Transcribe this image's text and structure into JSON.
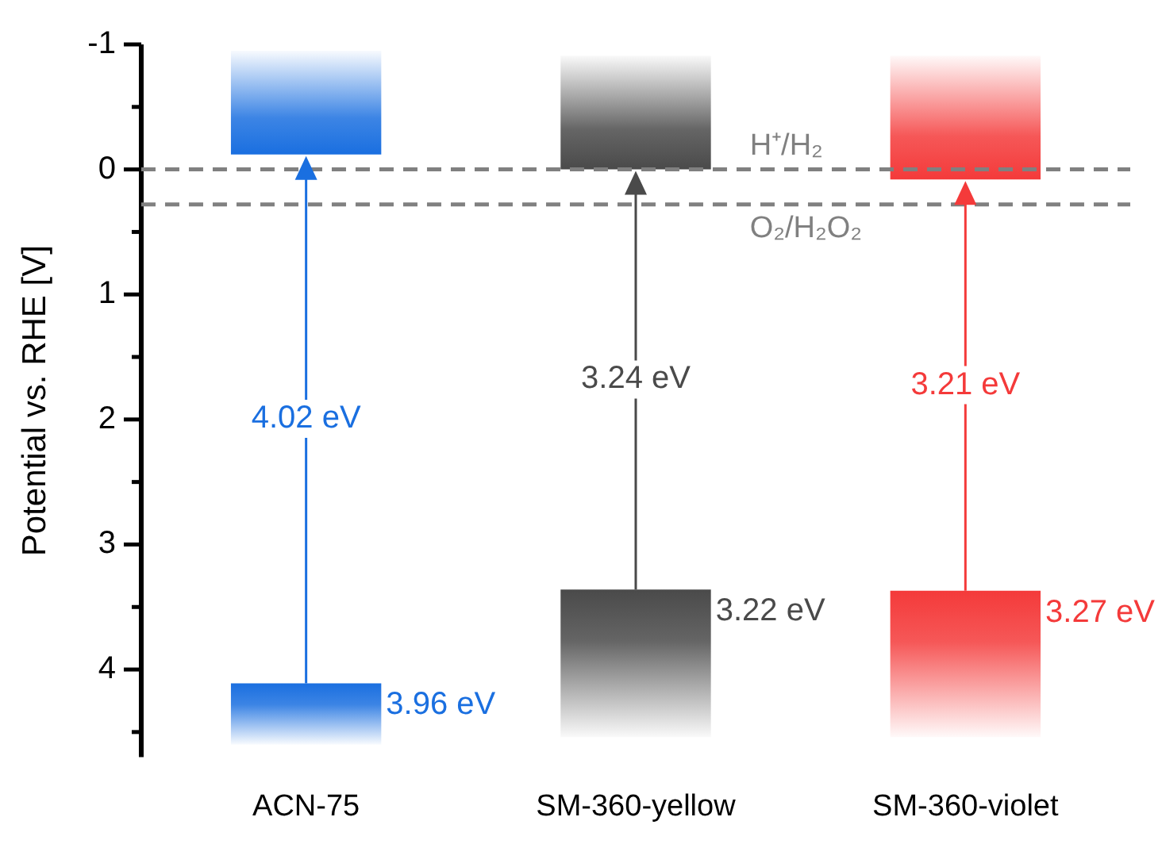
{
  "chart_data": {
    "type": "bar",
    "ylabel": "Potential vs. RHE [V]",
    "categories": [
      "ACN-75",
      "SM-360-yellow",
      "SM-360-violet"
    ],
    "series": [
      {
        "colors": [
          "#1a6fe0",
          "#4a4a4a",
          "#f43a3a"
        ],
        "base": [
          -0.12,
          0,
          0.08
        ],
        "values": [
          -0.83,
          -0.91,
          -0.99
        ]
      },
      {
        "colors": [
          "#1a6fe0",
          "#4a4a4a",
          "#f43a3a"
        ],
        "base": [
          4.11,
          3.36,
          3.37
        ],
        "values": [
          0.49,
          1.18,
          1.17
        ]
      }
    ],
    "ylim": [
      4.7,
      -1
    ],
    "yticks": [
      -1,
      {
        "value": -0.5,
        "label": null
      },
      0,
      {
        "value": 0.5,
        "label": null
      },
      1,
      {
        "value": 1.5,
        "label": null
      },
      2,
      {
        "value": 2.5,
        "label": null
      },
      3,
      {
        "value": 3.5,
        "label": null
      },
      4,
      {
        "value": 4.5,
        "label": null
      }
    ],
    "ref_lines": [
      {
        "axis": "y",
        "value": 0,
        "label": "H⁺/H₂",
        "color": "#808080",
        "line_style": "dashed"
      },
      {
        "axis": "y",
        "value": 0.28,
        "label": "O₂/H₂O₂",
        "color": "#808080",
        "line_style": "dashed"
      }
    ],
    "annotations": [
      "4.02 eV",
      "3.24 eV",
      "3.21 eV",
      "3.96 eV",
      "3.22 eV",
      "3.27 eV"
    ],
    "grid": false,
    "legend": false
  }
}
